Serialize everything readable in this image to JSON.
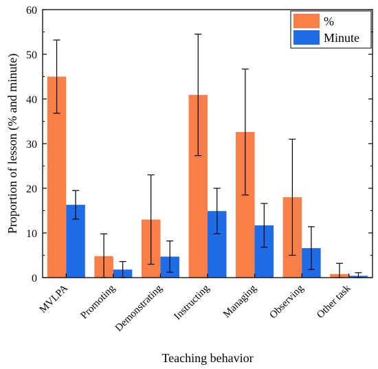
{
  "chart_data": {
    "type": "bar",
    "xlabel": "Teaching behavior",
    "ylabel": "Proportion of lesson (% and minute)",
    "ylim": [
      0,
      60
    ],
    "yticks": [
      0,
      10,
      20,
      30,
      40,
      50,
      60
    ],
    "categories": [
      "MVLPA",
      "Promoting",
      "Demonstrating",
      "Instructing",
      "Managing",
      "Observing",
      "Other task"
    ],
    "series": [
      {
        "name": "%",
        "color": "#f97e48",
        "values": [
          45.0,
          4.8,
          13.0,
          40.9,
          32.6,
          18.0,
          0.8
        ],
        "error": [
          8.2,
          5.0,
          10.0,
          13.6,
          14.1,
          13.0,
          2.4
        ]
      },
      {
        "name": "Minute",
        "color": "#1f6ce8",
        "values": [
          16.3,
          1.8,
          4.7,
          14.9,
          11.7,
          6.6,
          0.4
        ],
        "error": [
          3.2,
          1.8,
          3.5,
          5.1,
          4.9,
          4.8,
          0.7
        ]
      }
    ],
    "legend_position": "top-right",
    "grid": false
  }
}
